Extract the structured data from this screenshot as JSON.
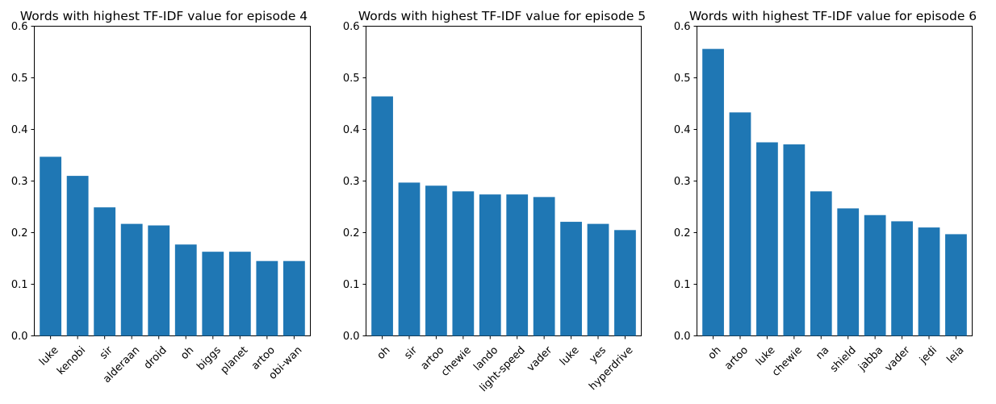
{
  "chart_data": [
    {
      "type": "bar",
      "title": "Words with highest TF-IDF value for episode 4",
      "xlabel": "",
      "ylabel": "",
      "ylim": [
        0,
        0.6
      ],
      "yticks": [
        "0.0",
        "0.1",
        "0.2",
        "0.3",
        "0.4",
        "0.5",
        "0.6"
      ],
      "grid": false,
      "bar_color": "#1f77b4",
      "categories": [
        "luke",
        "kenobi",
        "sir",
        "alderaan",
        "droid",
        "oh",
        "biggs",
        "planet",
        "artoo",
        "obi-wan"
      ],
      "values": [
        0.347,
        0.31,
        0.249,
        0.217,
        0.214,
        0.177,
        0.163,
        0.163,
        0.145,
        0.145
      ]
    },
    {
      "type": "bar",
      "title": "Words with highest TF-IDF value for episode 5",
      "xlabel": "",
      "ylabel": "",
      "ylim": [
        0,
        0.6
      ],
      "yticks": [
        "0.0",
        "0.1",
        "0.2",
        "0.3",
        "0.4",
        "0.5",
        "0.6"
      ],
      "grid": false,
      "bar_color": "#1f77b4",
      "categories": [
        "oh",
        "sir",
        "artoo",
        "chewie",
        "lando",
        "light-speed",
        "vader",
        "luke",
        "yes",
        "hyperdrive"
      ],
      "values": [
        0.464,
        0.297,
        0.291,
        0.28,
        0.274,
        0.274,
        0.269,
        0.221,
        0.217,
        0.205
      ]
    },
    {
      "type": "bar",
      "title": "Words with highest TF-IDF value for episode 6",
      "xlabel": "",
      "ylabel": "",
      "ylim": [
        0,
        0.6
      ],
      "yticks": [
        "0.0",
        "0.1",
        "0.2",
        "0.3",
        "0.4",
        "0.5",
        "0.6"
      ],
      "grid": false,
      "bar_color": "#1f77b4",
      "categories": [
        "oh",
        "artoo",
        "luke",
        "chewie",
        "na",
        "shield",
        "jabba",
        "vader",
        "jedi",
        "leia"
      ],
      "values": [
        0.556,
        0.433,
        0.375,
        0.371,
        0.28,
        0.247,
        0.234,
        0.222,
        0.21,
        0.197
      ]
    }
  ]
}
